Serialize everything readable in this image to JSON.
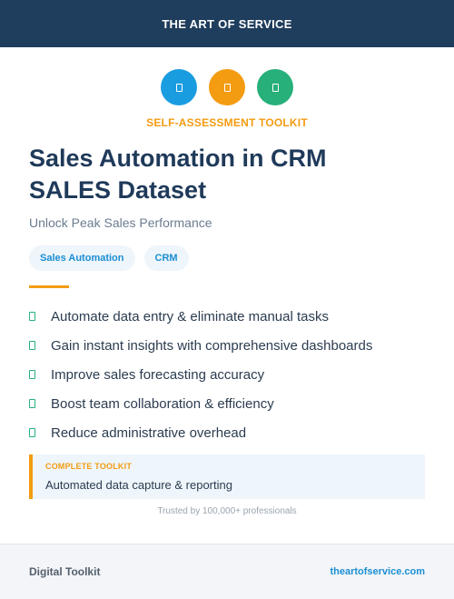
{
  "header": {
    "brand": "THE ART OF SERVICE"
  },
  "icons": [
    {
      "name": "document-icon",
      "color": "#1a9de0"
    },
    {
      "name": "document-icon",
      "color": "#f39c12"
    },
    {
      "name": "document-icon",
      "color": "#27b07a"
    }
  ],
  "kicker": "SELF-ASSESSMENT TOOLKIT",
  "title": {
    "line1": "Sales Automation in CRM",
    "line2": "SALES Dataset"
  },
  "subtitle": "Unlock Peak Sales Performance",
  "tags": [
    "Sales Automation",
    "CRM"
  ],
  "features": [
    "Automate data entry & eliminate manual tasks",
    "Gain instant insights with comprehensive dashboards",
    "Improve sales forecasting accuracy",
    "Boost team collaboration & efficiency",
    "Reduce administrative overhead"
  ],
  "callout": {
    "label": "COMPLETE TOOLKIT",
    "text": "Automated data capture & reporting"
  },
  "trusted": "Trusted by 100,000+ professionals",
  "footer": {
    "left": "Digital Toolkit",
    "right": "theartofservice.com"
  },
  "colors": {
    "header_bg": "#1f3d5c",
    "accent_orange": "#f39c12",
    "accent_blue": "#1a8fd3",
    "accent_green": "#27b07a"
  }
}
